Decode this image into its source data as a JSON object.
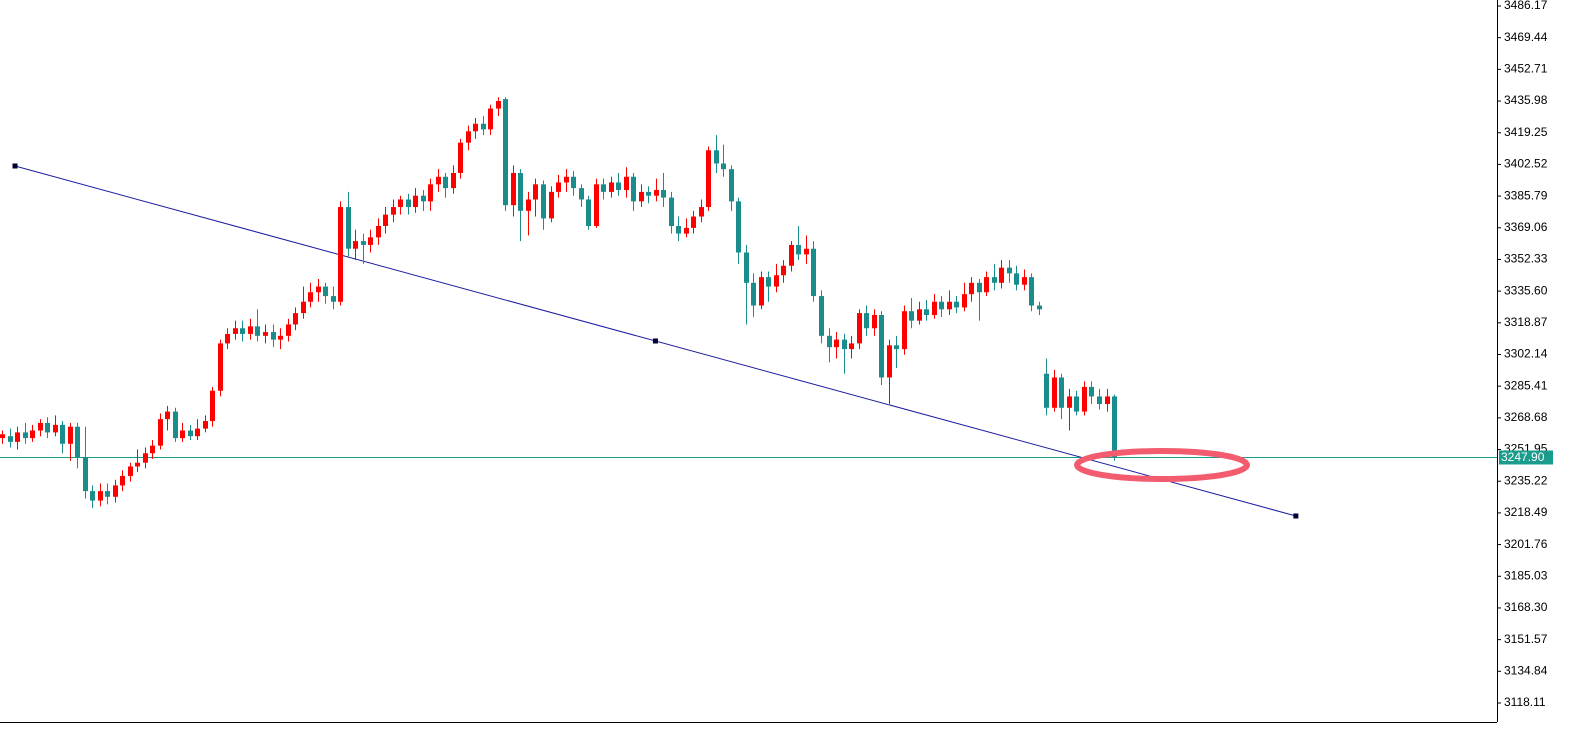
{
  "chart_data": {
    "type": "candlestick",
    "x": [
      0,
      1,
      2,
      3,
      4,
      5,
      6,
      7,
      8,
      9,
      10,
      11,
      12,
      13,
      14,
      15,
      16,
      17,
      18,
      19,
      20,
      21,
      22,
      23,
      24,
      25,
      26,
      27,
      28,
      29,
      30,
      31,
      32,
      33,
      34,
      35,
      36,
      37,
      38,
      39,
      40,
      41,
      42,
      43,
      44,
      45,
      46,
      47,
      48,
      49,
      50,
      51,
      52,
      53,
      54,
      55,
      56,
      57,
      58,
      59,
      60,
      61,
      62,
      63,
      64,
      65,
      66,
      67,
      68,
      69,
      70,
      71,
      72,
      73,
      74,
      75,
      76,
      77,
      78,
      79,
      80,
      81,
      82,
      83,
      84,
      85,
      86,
      87,
      88,
      89,
      90,
      91,
      92,
      93,
      94,
      95,
      96,
      97,
      98,
      99,
      100,
      101,
      102,
      103,
      104,
      105,
      106,
      107,
      108,
      109,
      110,
      111,
      112,
      113,
      114,
      115,
      116,
      117,
      118,
      119,
      120,
      121,
      122,
      123,
      124,
      125,
      126,
      127,
      128,
      129,
      130,
      131,
      132,
      133,
      134,
      135,
      136,
      137,
      138,
      139,
      140,
      141,
      142,
      143,
      144,
      145,
      146,
      147,
      148
    ],
    "open": [
      3258,
      3259,
      3256,
      3261,
      3258,
      3262,
      3266,
      3261,
      3265,
      3255,
      3264,
      3248,
      3230,
      3225,
      3230,
      3227,
      3233,
      3238,
      3243,
      3245,
      3250,
      3254,
      3268,
      3272,
      3258,
      3262,
      3259,
      3263,
      3267,
      3283,
      3308,
      3313,
      3316,
      3313,
      3317,
      3312,
      3314,
      3310,
      3312,
      3318,
      3324,
      3330,
      3335,
      3338,
      3333,
      3330,
      3380,
      3358,
      3362,
      3360,
      3364,
      3370,
      3376,
      3380,
      3384,
      3380,
      3386,
      3383,
      3392,
      3396,
      3390,
      3398,
      3414,
      3420,
      3424,
      3421,
      3432,
      3437,
      3381,
      3398,
      3378,
      3384,
      3392,
      3374,
      3388,
      3393,
      3396,
      3390,
      3384,
      3370,
      3392,
      3388,
      3393,
      3389,
      3396,
      3383,
      3388,
      3386,
      3389,
      3385,
      3370,
      3366,
      3369,
      3375,
      3380,
      3410,
      3403,
      3400,
      3383,
      3356,
      3340,
      3328,
      3343,
      3338,
      3344,
      3349,
      3360,
      3355,
      3358,
      3333,
      3312,
      3306,
      3310,
      3305,
      3308,
      3324,
      3316,
      3323,
      3290,
      3307,
      3305,
      3325,
      3320,
      3326,
      3323,
      3330,
      3326,
      3330,
      3327,
      3334,
      3340,
      3335,
      3343,
      3340,
      3348,
      3345,
      3339,
      3343,
      3328,
      3292,
      3274,
      3290,
      3274,
      3280,
      3272,
      3285,
      3280,
      3276,
      3280
    ],
    "high": [
      3262,
      3263,
      3264,
      3266,
      3265,
      3268,
      3269,
      3270,
      3267,
      3266,
      3266,
      3264,
      3233,
      3234,
      3234,
      3236,
      3241,
      3245,
      3252,
      3253,
      3257,
      3271,
      3275,
      3274,
      3266,
      3265,
      3268,
      3270,
      3285,
      3310,
      3316,
      3320,
      3320,
      3321,
      3326,
      3318,
      3318,
      3316,
      3321,
      3327,
      3338,
      3340,
      3342,
      3340,
      3338,
      3383,
      3388,
      3368,
      3366,
      3368,
      3374,
      3380,
      3384,
      3386,
      3387,
      3390,
      3389,
      3395,
      3400,
      3398,
      3402,
      3416,
      3423,
      3427,
      3428,
      3434,
      3438,
      3438,
      3402,
      3400,
      3388,
      3395,
      3394,
      3391,
      3397,
      3400,
      3399,
      3392,
      3386,
      3395,
      3395,
      3396,
      3398,
      3401,
      3398,
      3392,
      3391,
      3395,
      3398,
      3388,
      3375,
      3374,
      3378,
      3384,
      3412,
      3418,
      3413,
      3402,
      3385,
      3360,
      3345,
      3346,
      3346,
      3350,
      3352,
      3362,
      3370,
      3365,
      3362,
      3336,
      3316,
      3314,
      3313,
      3312,
      3326,
      3328,
      3326,
      3325,
      3310,
      3312,
      3328,
      3332,
      3330,
      3331,
      3334,
      3333,
      3336,
      3333,
      3340,
      3343,
      3342,
      3346,
      3350,
      3352,
      3352,
      3349,
      3347,
      3345,
      3330,
      3300,
      3294,
      3292,
      3284,
      3283,
      3288,
      3288,
      3284,
      3284,
      3281
    ],
    "low": [
      3255,
      3253,
      3252,
      3255,
      3256,
      3259,
      3258,
      3259,
      3250,
      3246,
      3242,
      3226,
      3221,
      3222,
      3223,
      3224,
      3230,
      3235,
      3240,
      3242,
      3247,
      3252,
      3262,
      3256,
      3256,
      3257,
      3257,
      3261,
      3264,
      3280,
      3305,
      3310,
      3309,
      3310,
      3309,
      3308,
      3306,
      3305,
      3309,
      3315,
      3321,
      3327,
      3330,
      3329,
      3326,
      3328,
      3354,
      3352,
      3350,
      3356,
      3360,
      3366,
      3372,
      3376,
      3376,
      3377,
      3378,
      3378,
      3388,
      3385,
      3387,
      3395,
      3410,
      3416,
      3418,
      3418,
      3428,
      3378,
      3375,
      3362,
      3365,
      3375,
      3368,
      3372,
      3385,
      3388,
      3386,
      3380,
      3368,
      3369,
      3384,
      3385,
      3386,
      3385,
      3378,
      3380,
      3382,
      3383,
      3380,
      3366,
      3362,
      3364,
      3366,
      3372,
      3378,
      3398,
      3396,
      3378,
      3350,
      3318,
      3322,
      3326,
      3330,
      3335,
      3340,
      3346,
      3352,
      3350,
      3330,
      3308,
      3298,
      3300,
      3292,
      3300,
      3305,
      3312,
      3312,
      3286,
      3276,
      3295,
      3302,
      3316,
      3318,
      3320,
      3321,
      3322,
      3323,
      3324,
      3325,
      3330,
      3320,
      3333,
      3336,
      3337,
      3340,
      3336,
      3336,
      3325,
      3323,
      3270,
      3272,
      3268,
      3262,
      3270,
      3270,
      3276,
      3273,
      3272,
      3246
    ],
    "close": [
      3260,
      3256,
      3261,
      3258,
      3262,
      3266,
      3261,
      3265,
      3255,
      3264,
      3248,
      3230,
      3225,
      3230,
      3227,
      3233,
      3238,
      3243,
      3245,
      3250,
      3254,
      3268,
      3272,
      3258,
      3262,
      3259,
      3263,
      3267,
      3283,
      3308,
      3313,
      3316,
      3313,
      3317,
      3312,
      3314,
      3310,
      3312,
      3318,
      3324,
      3330,
      3335,
      3338,
      3333,
      3330,
      3380,
      3358,
      3362,
      3360,
      3364,
      3370,
      3376,
      3380,
      3384,
      3380,
      3386,
      3383,
      3392,
      3396,
      3390,
      3398,
      3414,
      3420,
      3424,
      3421,
      3432,
      3436,
      3381,
      3398,
      3378,
      3384,
      3392,
      3374,
      3388,
      3393,
      3396,
      3390,
      3384,
      3370,
      3392,
      3388,
      3393,
      3389,
      3396,
      3383,
      3388,
      3386,
      3389,
      3385,
      3370,
      3366,
      3369,
      3375,
      3380,
      3410,
      3403,
      3400,
      3383,
      3356,
      3340,
      3328,
      3343,
      3338,
      3344,
      3349,
      3360,
      3355,
      3358,
      3333,
      3312,
      3306,
      3310,
      3305,
      3308,
      3324,
      3316,
      3323,
      3290,
      3307,
      3305,
      3325,
      3320,
      3326,
      3323,
      3330,
      3326,
      3330,
      3327,
      3334,
      3340,
      3335,
      3343,
      3340,
      3348,
      3345,
      3339,
      3343,
      3328,
      3326,
      3274,
      3290,
      3274,
      3280,
      3272,
      3285,
      3280,
      3276,
      3280,
      3247.9
    ],
    "up_color": "#ff0000",
    "down_color": "#1a8c8c",
    "xlim": [
      -0.27,
      198.97
    ],
    "ylim": [
      3108.07,
      3489.34
    ],
    "yticks": [
      3486.17,
      3469.44,
      3452.71,
      3435.98,
      3419.25,
      3402.52,
      3385.79,
      3369.06,
      3352.33,
      {
        "value": 3335.6,
        "label": "3335.60"
      },
      3318.87,
      3302.14,
      3285.41,
      3268.68,
      3251.95,
      3235.22,
      3218.49,
      3201.76,
      3185.03,
      {
        "value": 3168.3,
        "label": "3168.30"
      },
      3151.57,
      3134.84,
      3118.11
    ],
    "last_price": {
      "value": 3247.9,
      "label": "3247.90",
      "color": "#1a9c8c"
    },
    "trendline": {
      "color": "#1c1ca0",
      "points": [
        {
          "x": 1.73,
          "y": 3401.68
        },
        {
          "x": 172.2,
          "y": 3216.86
        }
      ]
    }
  }
}
